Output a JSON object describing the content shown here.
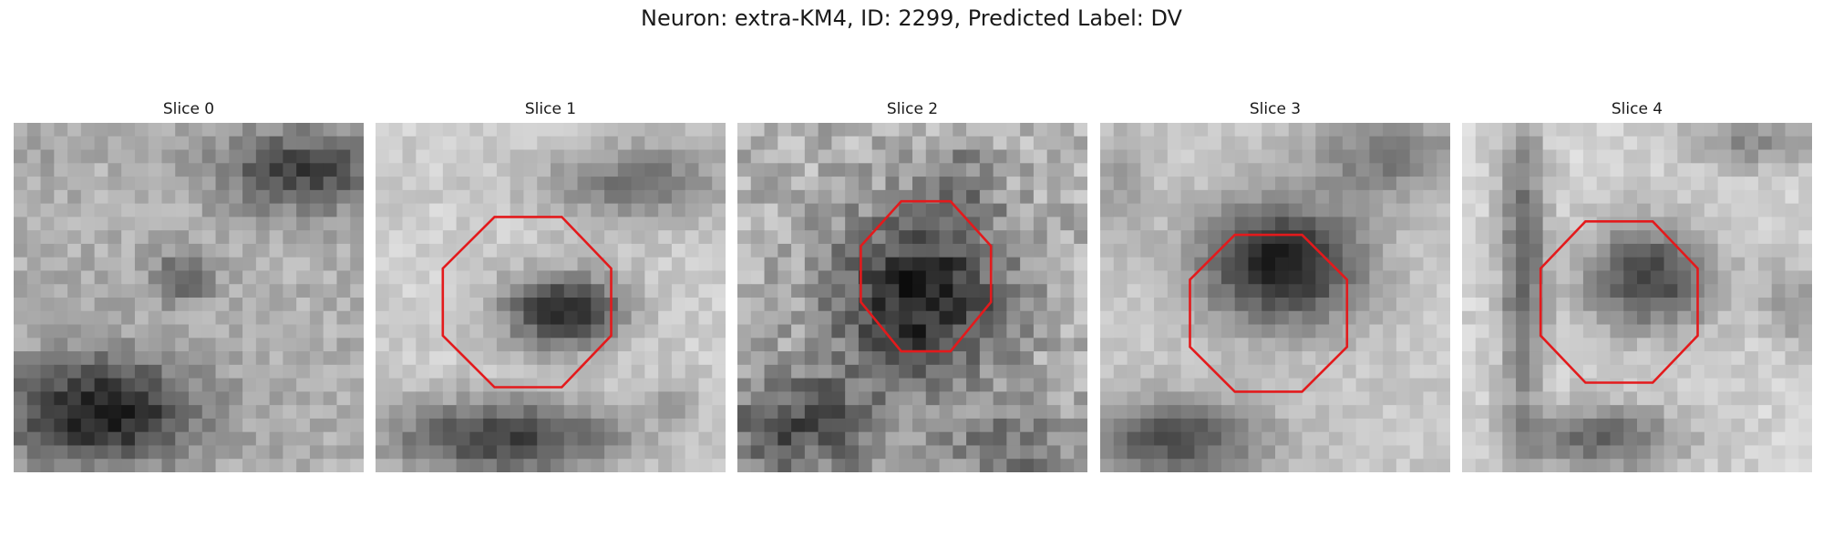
{
  "figure": {
    "title": "Neuron: extra-KM4, ID: 2299, Predicted Label: DV"
  },
  "panels": [
    {
      "title": "Slice 0",
      "has_outline": false
    },
    {
      "title": "Slice 1",
      "has_outline": true
    },
    {
      "title": "Slice 2",
      "has_outline": true
    },
    {
      "title": "Slice 3",
      "has_outline": true
    },
    {
      "title": "Slice 4",
      "has_outline": true
    }
  ],
  "colors": {
    "outline": "#e31a1c",
    "background": "#ffffff"
  }
}
